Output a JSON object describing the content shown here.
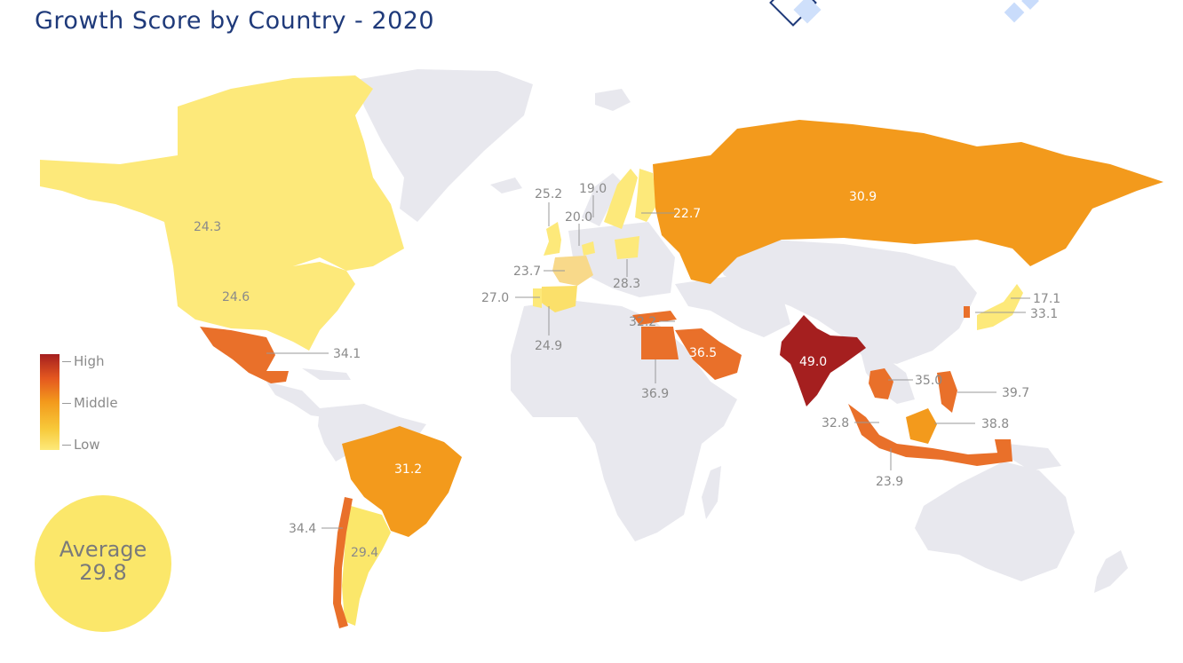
{
  "title": "Growth Score by Country - 2020",
  "legend": {
    "high": "High",
    "middle": "Middle",
    "low": "Low"
  },
  "average": {
    "label": "Average",
    "value": "29.8"
  },
  "colors": {
    "no_data": "#e8e8ee",
    "low": "#fde97a",
    "mid_low": "#f7c93a",
    "middle": "#f39a1c",
    "mid_high": "#e4571f",
    "high": "#a51f1f"
  },
  "chart_data": {
    "type": "choropleth",
    "title": "Growth Score by Country - 2020",
    "average": 29.8,
    "countries": [
      {
        "name": "Canada",
        "value": 24.3,
        "label": "24.3"
      },
      {
        "name": "United States",
        "value": 24.6,
        "label": "24.6"
      },
      {
        "name": "Mexico",
        "value": 34.1,
        "label": "34.1"
      },
      {
        "name": "Brazil",
        "value": 31.2,
        "label": "31.2"
      },
      {
        "name": "Chile",
        "value": 34.4,
        "label": "34.4"
      },
      {
        "name": "Argentina",
        "value": 29.4,
        "label": "29.4"
      },
      {
        "name": "United Kingdom",
        "value": 25.2,
        "label": "25.2"
      },
      {
        "name": "Sweden",
        "value": 19.0,
        "label": "19.0"
      },
      {
        "name": "Netherlands",
        "value": 20.0,
        "label": "20.0"
      },
      {
        "name": "France",
        "value": 23.7,
        "label": "23.7"
      },
      {
        "name": "Spain",
        "value": 27.0,
        "label": "27.0"
      },
      {
        "name": "Portugal",
        "value": 24.9,
        "label": "24.9"
      },
      {
        "name": "Poland",
        "value": 28.3,
        "label": "28.3"
      },
      {
        "name": "Finland",
        "value": 22.7,
        "label": "22.7"
      },
      {
        "name": "Russia",
        "value": 30.9,
        "label": "30.9"
      },
      {
        "name": "Turkey",
        "value": 32.2,
        "label": "32.2"
      },
      {
        "name": "Egypt",
        "value": 36.9,
        "label": "36.9"
      },
      {
        "name": "Saudi Arabia",
        "value": 36.5,
        "label": "36.5"
      },
      {
        "name": "India",
        "value": 49.0,
        "label": "49.0"
      },
      {
        "name": "Vietnam",
        "value": 35.0,
        "label": "35.0"
      },
      {
        "name": "Philippines",
        "value": 39.7,
        "label": "39.7"
      },
      {
        "name": "Malaysia",
        "value": 38.8,
        "label": "38.8"
      },
      {
        "name": "Singapore",
        "value": 32.8,
        "label": "32.8"
      },
      {
        "name": "Indonesia",
        "value": 23.9,
        "label": "23.9"
      },
      {
        "name": "Japan",
        "value": 17.1,
        "label": "17.1"
      },
      {
        "name": "South Korea",
        "value": 33.1,
        "label": "33.1"
      }
    ]
  }
}
